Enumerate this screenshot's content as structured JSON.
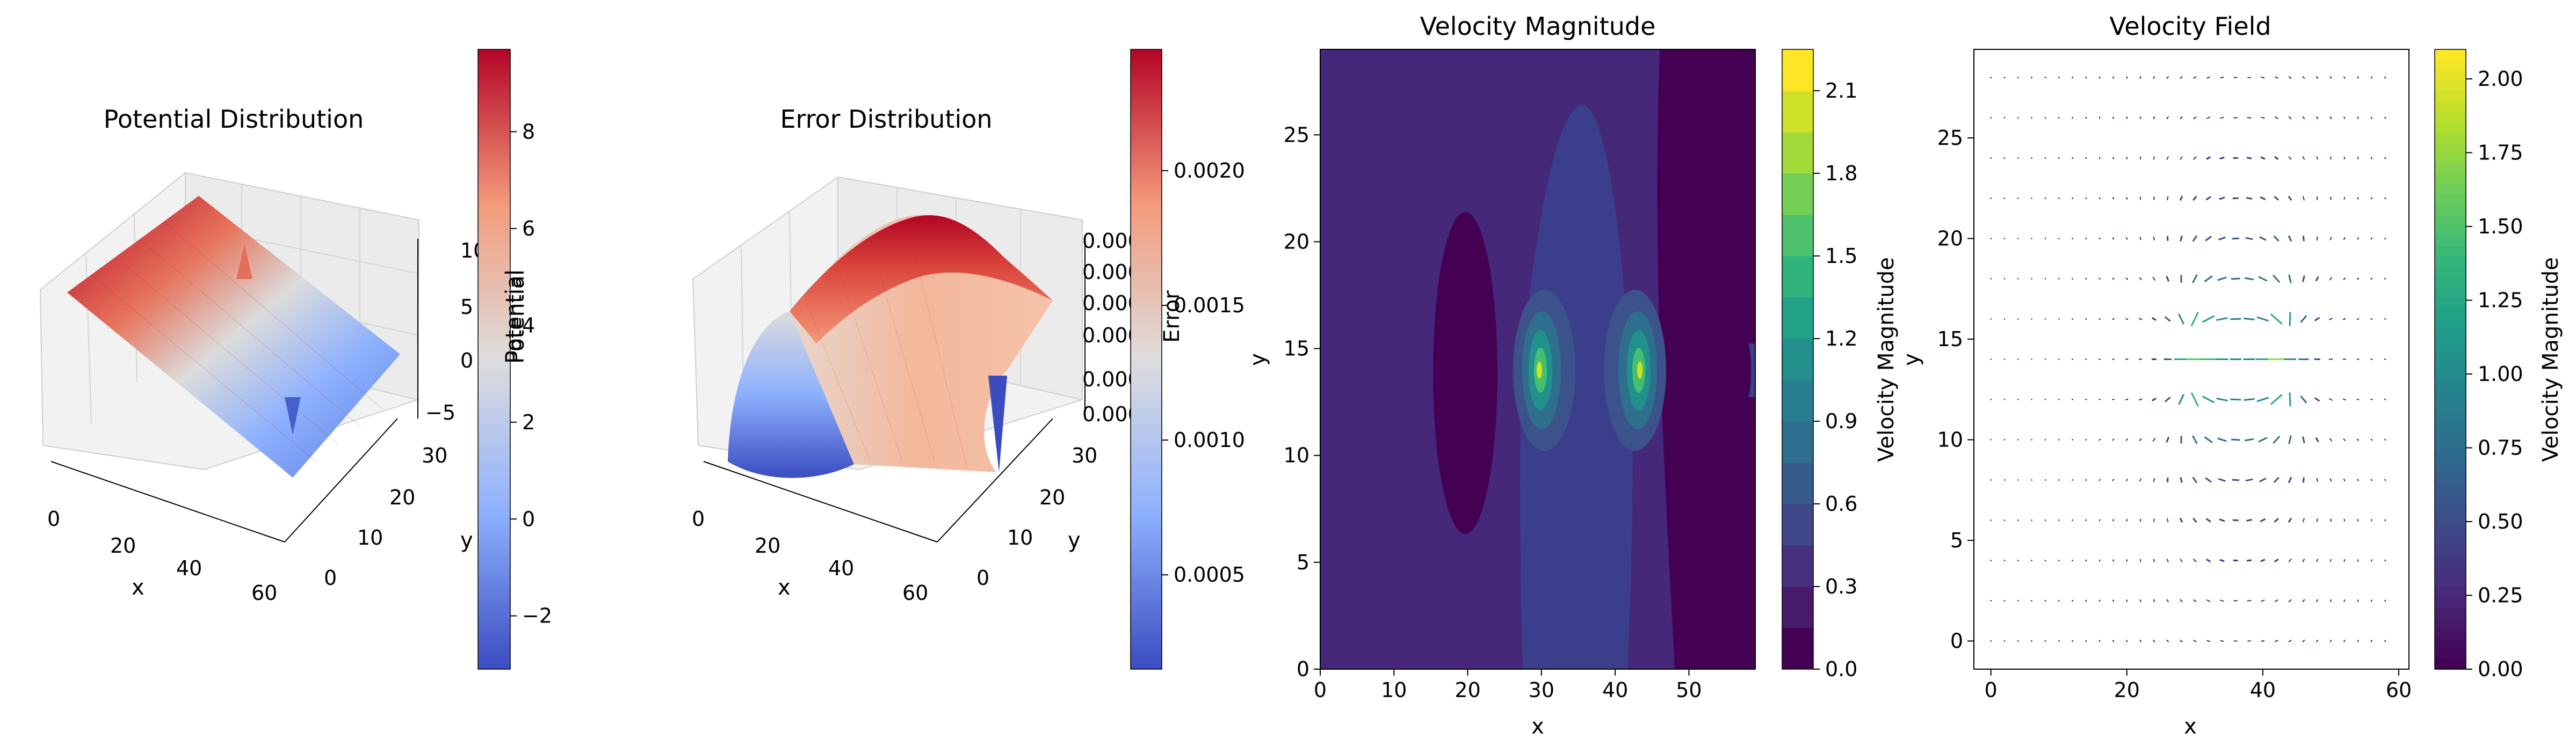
{
  "chart_data": [
    {
      "type": "surface",
      "title": "Potential Distribution",
      "xlabel": "x",
      "ylabel": "y",
      "zlabel": "Potential",
      "x_ticks": [
        "0",
        "20",
        "40",
        "60"
      ],
      "y_ticks": [
        "0",
        "10",
        "20",
        "30"
      ],
      "z_ticks": [
        "−5",
        "0",
        "5",
        "10"
      ],
      "xlim": [
        0,
        60
      ],
      "ylim": [
        0,
        30
      ],
      "zlim": [
        -5,
        10
      ],
      "colormap": "coolwarm",
      "colorbar": {
        "label": "Potential",
        "range": [
          -3.1,
          9.7
        ],
        "ticks": [
          "−2",
          "0",
          "2",
          "4",
          "6",
          "8"
        ]
      }
    },
    {
      "type": "surface",
      "title": "Error Distribution",
      "xlabel": "x",
      "ylabel": "y",
      "zlabel": "Error",
      "x_ticks": [
        "0",
        "20",
        "40",
        "60"
      ],
      "y_ticks": [
        "0",
        "10",
        "20",
        "30"
      ],
      "z_ticks": [
        "0.000",
        "0.000",
        "0.000",
        "0.000",
        "0.000",
        "0.000"
      ],
      "xlim": [
        0,
        60
      ],
      "ylim": [
        0,
        30
      ],
      "colormap": "coolwarm",
      "colorbar": {
        "label": "Error",
        "range": [
          0.00015,
          0.00245
        ],
        "ticks": [
          "0.0005",
          "0.0010",
          "0.0015",
          "0.0020"
        ]
      }
    },
    {
      "type": "contourf",
      "title": "Velocity Magnitude",
      "xlabel": "x",
      "ylabel": "y",
      "x_ticks": [
        "0",
        "10",
        "20",
        "30",
        "40",
        "50"
      ],
      "y_ticks": [
        "0",
        "5",
        "10",
        "15",
        "20",
        "25"
      ],
      "xlim": [
        0,
        59
      ],
      "ylim": [
        0,
        29
      ],
      "colormap": "viridis",
      "levels": [
        0.0,
        0.15,
        0.3,
        0.45,
        0.6,
        0.75,
        0.9,
        1.05,
        1.2,
        1.35,
        1.5,
        1.65,
        1.8,
        1.95,
        2.1,
        2.25
      ],
      "sources": [
        {
          "x": 29.5,
          "y": 14
        },
        {
          "x": 43.5,
          "y": 14
        }
      ],
      "colorbar": {
        "label": "Velocity Magnitude",
        "range": [
          0.0,
          2.25
        ],
        "ticks": [
          "0.0",
          "0.3",
          "0.6",
          "0.9",
          "1.2",
          "1.5",
          "1.8",
          "2.1"
        ]
      }
    },
    {
      "type": "quiver",
      "title": "Velocity Field",
      "xlabel": "x",
      "ylabel": "y",
      "x_ticks": [
        "0",
        "20",
        "40",
        "60"
      ],
      "y_ticks": [
        "0",
        "5",
        "10",
        "15",
        "20",
        "25"
      ],
      "xlim": [
        -2.5,
        61.5
      ],
      "ylim": [
        -1.4,
        29.4
      ],
      "grid_step": 2,
      "colormap": "viridis",
      "colorbar": {
        "label": "Velocity Magnitude",
        "range": [
          0.0,
          2.1
        ],
        "ticks": [
          "0.00",
          "0.25",
          "0.50",
          "0.75",
          "1.00",
          "1.25",
          "1.50",
          "1.75",
          "2.00"
        ]
      }
    }
  ]
}
